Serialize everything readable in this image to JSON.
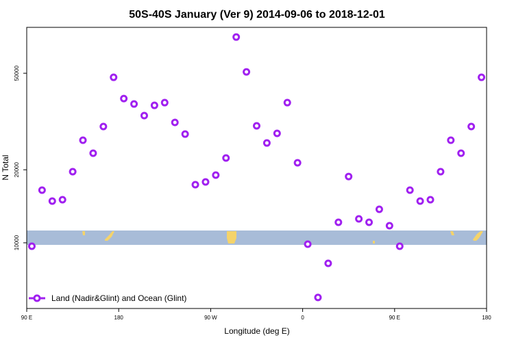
{
  "chart_data": {
    "type": "scatter",
    "title": "50S-40S January (Ver 9)   2014-09-06 to 2018-12-01",
    "x_label": "Longitude (deg E)",
    "y_label": "N Total",
    "log_y": true,
    "grid": false,
    "legend_position": "lower left",
    "xlim": [
      90,
      540
    ],
    "xticks": [
      {
        "value": 90,
        "label": "90 E"
      },
      180,
      {
        "value": 270,
        "label": "90 W"
      },
      {
        "value": 360,
        "label": "0"
      },
      {
        "value": 450,
        "label": "90 E"
      },
      {
        "value": 540,
        "label": "180"
      }
    ],
    "ylim": [
      5360,
      77300
    ],
    "yticks": [
      10000,
      20000,
      50000
    ],
    "series": [
      {
        "name": "Land (Nadir&Glint) and Ocean (Glint)",
        "color": "#a020f0",
        "x": [
          95,
          105,
          115,
          125,
          135,
          145,
          155,
          165,
          175,
          185,
          195,
          205,
          215,
          225,
          235,
          245,
          255,
          265,
          275,
          285,
          295,
          305,
          315,
          325,
          335,
          345,
          355,
          365,
          375,
          385,
          395,
          405,
          415,
          425,
          435,
          445,
          455,
          465,
          475,
          485,
          495,
          505,
          515,
          525,
          535
        ],
        "values": [
          9680,
          16480,
          14860,
          15050,
          19640,
          26470,
          23400,
          30150,
          48100,
          39320,
          37340,
          33440,
          36860,
          37830,
          31340,
          28060,
          17360,
          17820,
          19010,
          22360,
          70500,
          50650,
          30340,
          25790,
          28250,
          37830,
          21370,
          9870,
          5950,
          8230,
          12150,
          18760,
          12550,
          12150,
          13740,
          11760,
          9680,
          16480,
          14860,
          15050,
          19640,
          26470,
          23400,
          30150,
          48100
        ]
      }
    ]
  }
}
